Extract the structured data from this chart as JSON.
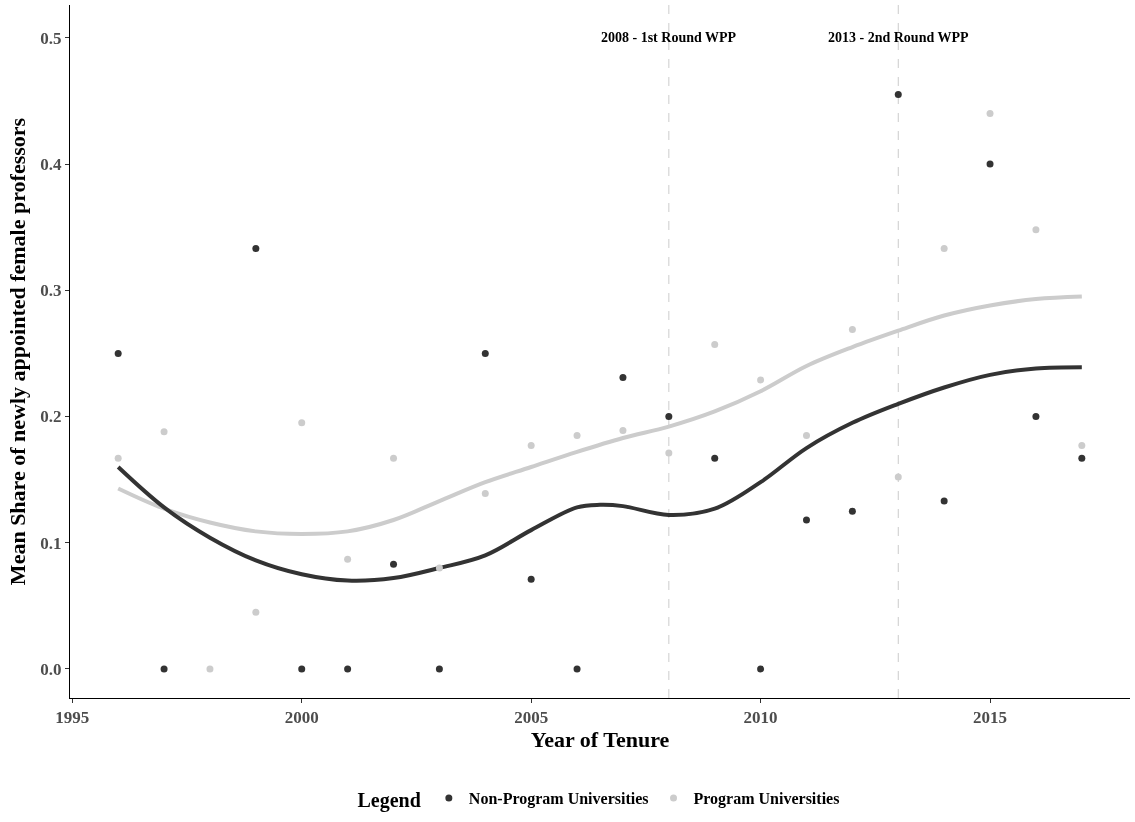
{
  "chart_data": {
    "type": "scatter",
    "xlabel": "Year of Tenure",
    "ylabel": "Mean Share of newly appointed female professors",
    "legend_title": "Legend",
    "xlim": [
      1994.95,
      2018.05
    ],
    "xticks": [
      1995,
      2000,
      2005,
      2010,
      2015
    ],
    "ylim": [
      -0.023,
      0.526
    ],
    "yticks": [
      {
        "value": 0,
        "label": "0.0"
      },
      0.1,
      0.2,
      0.3,
      0.4,
      0.5
    ],
    "grid": false,
    "legend": "bottom",
    "ref_lines": [
      {
        "axis": "x",
        "value": 2008,
        "label": "2008 - 1st Round WPP",
        "color": "#cccccc",
        "line_style": "dashed"
      },
      {
        "axis": "x",
        "value": 2013,
        "label": "2013 - 2nd Round WPP",
        "color": "#cccccc",
        "line_style": "dashed"
      }
    ],
    "series": [
      {
        "name": "Non-Program Universities",
        "marker": "circle",
        "color": "#333333",
        "x": [
          1996,
          1997,
          1999,
          2000,
          2001,
          2002,
          2003,
          2004,
          2005,
          2006,
          2007,
          2008,
          2009,
          2010,
          2011,
          2012,
          2013,
          2014,
          2015,
          2016,
          2017
        ],
        "values": [
          0.25,
          0,
          0.333,
          0,
          0,
          0.083,
          0,
          0.25,
          0.071,
          0,
          0.231,
          0.2,
          0.167,
          0,
          0.118,
          0.125,
          0.455,
          0.133,
          0.4,
          0.2,
          0.167
        ]
      },
      {
        "name": "Program Universities",
        "marker": "circle",
        "color": "#cccccc",
        "x": [
          1996,
          1997,
          1998,
          1999,
          2000,
          2001,
          2002,
          2003,
          2004,
          2005,
          2006,
          2007,
          2008,
          2009,
          2010,
          2011,
          2012,
          2013,
          2014,
          2015,
          2016,
          2017
        ],
        "values": [
          0.167,
          0.188,
          0,
          0.045,
          0.195,
          0.087,
          0.167,
          0.08,
          0.139,
          0.177,
          0.185,
          0.189,
          0.171,
          0.257,
          0.229,
          0.185,
          0.269,
          0.152,
          0.333,
          0.44,
          0.348,
          0.177
        ]
      },
      {
        "type": "line",
        "marker": "none",
        "color": "#cccccc",
        "x": [
          1996,
          1997,
          1998,
          1999,
          2000,
          2001,
          2002,
          2003,
          2004,
          2005,
          2006,
          2007,
          2008,
          2009,
          2010,
          2011,
          2012,
          2013,
          2014,
          2015,
          2016,
          2017
        ],
        "values": [
          0.143,
          0.127,
          0.116,
          0.109,
          0.107,
          0.109,
          0.118,
          0.133,
          0.148,
          0.16,
          0.172,
          0.183,
          0.192,
          0.204,
          0.22,
          0.24,
          0.255,
          0.268,
          0.28,
          0.288,
          0.293,
          0.295
        ]
      },
      {
        "type": "line",
        "marker": "none",
        "color": "#333333",
        "x": [
          1996,
          1997,
          1998,
          1999,
          2000,
          2001,
          2002,
          2003,
          2004,
          2005,
          2006,
          2006.5,
          2007,
          2008,
          2009,
          2010,
          2011,
          2012,
          2013,
          2014,
          2015,
          2016,
          2017
        ],
        "values": [
          0.16,
          0.128,
          0.104,
          0.086,
          0.075,
          0.07,
          0.072,
          0.08,
          0.09,
          0.11,
          0.128,
          0.13,
          0.129,
          0.122,
          0.127,
          0.148,
          0.175,
          0.195,
          0.21,
          0.223,
          0.233,
          0.238,
          0.239
        ]
      }
    ]
  }
}
